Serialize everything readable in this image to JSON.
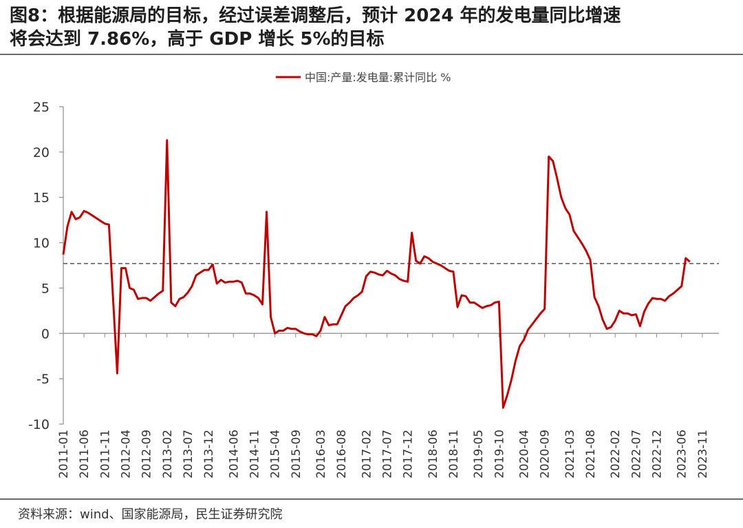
{
  "figure": {
    "title_line1": "图8：根据能源局的目标，经过误差调整后，预计 2024 年的发电量同比增速",
    "title_line2": "将会达到 7.86%，高于 GDP 增长 5%的目标",
    "source": "资料来源：wind、国家能源局，民生证券研究院"
  },
  "chart_data": {
    "type": "line",
    "legend": {
      "label": "中国:产量:发电量:累计同比 %",
      "position": "top-center"
    },
    "ylim": [
      -10,
      25
    ],
    "yticks": [
      -10,
      -5,
      0,
      5,
      10,
      15,
      20,
      25
    ],
    "xtick_labels": [
      "2011-01",
      "2011-06",
      "2011-11",
      "2012-04",
      "2012-09",
      "2013-02",
      "2013-07",
      "2013-12",
      "2014-06",
      "2014-11",
      "2015-04",
      "2015-09",
      "2016-03",
      "2016-08",
      "2017-02",
      "2017-07",
      "2017-12",
      "2018-06",
      "2018-11",
      "2019-05",
      "2019-10",
      "2020-04",
      "2020-09",
      "2021-03",
      "2021-08",
      "2022-02",
      "2022-07",
      "2022-12",
      "2023-06",
      "2023-11"
    ],
    "reference_line": {
      "value": 7.7,
      "style": "dashed",
      "color": "#333333"
    },
    "colors": {
      "series": "#C00000",
      "axis": "#8c8c8c"
    },
    "series": [
      {
        "name": "中国:产量:发电量:累计同比 %",
        "points": [
          [
            "2011-01",
            8.7
          ],
          [
            "2011-02",
            11.8
          ],
          [
            "2011-03",
            13.4
          ],
          [
            "2011-04",
            12.6
          ],
          [
            "2011-05",
            12.8
          ],
          [
            "2011-06",
            13.5
          ],
          [
            "2011-07",
            13.3
          ],
          [
            "2011-08",
            13.0
          ],
          [
            "2011-09",
            12.7
          ],
          [
            "2011-10",
            12.4
          ],
          [
            "2011-11",
            12.1
          ],
          [
            "2011-12",
            12.0
          ],
          [
            "2012-02",
            -4.4
          ],
          [
            "2012-03",
            7.2
          ],
          [
            "2012-04",
            7.2
          ],
          [
            "2012-05",
            5.0
          ],
          [
            "2012-06",
            4.8
          ],
          [
            "2012-07",
            3.8
          ],
          [
            "2012-08",
            3.9
          ],
          [
            "2012-09",
            3.9
          ],
          [
            "2012-10",
            3.6
          ],
          [
            "2012-11",
            4.0
          ],
          [
            "2012-12",
            4.4
          ],
          [
            "2013-01",
            4.7
          ],
          [
            "2013-02",
            21.3
          ],
          [
            "2013-03",
            3.4
          ],
          [
            "2013-04",
            3.0
          ],
          [
            "2013-05",
            3.8
          ],
          [
            "2013-06",
            4.0
          ],
          [
            "2013-07",
            4.5
          ],
          [
            "2013-08",
            5.2
          ],
          [
            "2013-09",
            6.4
          ],
          [
            "2013-10",
            6.7
          ],
          [
            "2013-11",
            7.0
          ],
          [
            "2013-12",
            7.0
          ],
          [
            "2014-01",
            7.6
          ],
          [
            "2014-02",
            5.5
          ],
          [
            "2014-03",
            5.9
          ],
          [
            "2014-04",
            5.6
          ],
          [
            "2014-05",
            5.7
          ],
          [
            "2014-06",
            5.7
          ],
          [
            "2014-07",
            5.8
          ],
          [
            "2014-08",
            5.6
          ],
          [
            "2014-09",
            4.4
          ],
          [
            "2014-10",
            4.4
          ],
          [
            "2014-11",
            4.2
          ],
          [
            "2014-12",
            3.9
          ],
          [
            "2015-01",
            3.2
          ],
          [
            "2015-02",
            13.4
          ],
          [
            "2015-03",
            1.8
          ],
          [
            "2015-04",
            0.0
          ],
          [
            "2015-05",
            0.3
          ],
          [
            "2015-06",
            0.3
          ],
          [
            "2015-07",
            0.6
          ],
          [
            "2015-08",
            0.5
          ],
          [
            "2015-09",
            0.5
          ],
          [
            "2015-10",
            0.2
          ],
          [
            "2015-11",
            0.0
          ],
          [
            "2015-12",
            -0.1
          ],
          [
            "2016-01",
            -0.1
          ],
          [
            "2016-02",
            -0.3
          ],
          [
            "2016-03",
            0.3
          ],
          [
            "2016-04",
            1.8
          ],
          [
            "2016-05",
            0.9
          ],
          [
            "2016-06",
            1.0
          ],
          [
            "2016-07",
            1.0
          ],
          [
            "2016-08",
            2.0
          ],
          [
            "2016-09",
            3.0
          ],
          [
            "2016-10",
            3.4
          ],
          [
            "2016-11",
            3.9
          ],
          [
            "2016-12",
            4.2
          ],
          [
            "2017-01",
            4.6
          ],
          [
            "2017-02",
            6.3
          ],
          [
            "2017-03",
            6.8
          ],
          [
            "2017-04",
            6.7
          ],
          [
            "2017-05",
            6.5
          ],
          [
            "2017-06",
            6.4
          ],
          [
            "2017-07",
            6.9
          ],
          [
            "2017-08",
            6.6
          ],
          [
            "2017-09",
            6.4
          ],
          [
            "2017-10",
            6.0
          ],
          [
            "2017-11",
            5.8
          ],
          [
            "2017-12",
            5.7
          ],
          [
            "2018-01",
            11.1
          ],
          [
            "2018-02",
            8.0
          ],
          [
            "2018-03",
            7.7
          ],
          [
            "2018-04",
            8.5
          ],
          [
            "2018-05",
            8.3
          ],
          [
            "2018-06",
            7.9
          ],
          [
            "2018-07",
            7.7
          ],
          [
            "2018-08",
            7.5
          ],
          [
            "2018-09",
            7.2
          ],
          [
            "2018-10",
            6.9
          ],
          [
            "2018-11",
            6.8
          ],
          [
            "2018-12",
            2.9
          ],
          [
            "2019-01",
            4.2
          ],
          [
            "2019-02",
            4.1
          ],
          [
            "2019-03",
            3.4
          ],
          [
            "2019-04",
            3.4
          ],
          [
            "2019-05",
            3.1
          ],
          [
            "2019-06",
            2.8
          ],
          [
            "2019-07",
            3.0
          ],
          [
            "2019-08",
            3.1
          ],
          [
            "2019-09",
            3.4
          ],
          [
            "2019-10",
            3.5
          ],
          [
            "2019-11",
            -8.2
          ],
          [
            "2019-12",
            -6.8
          ],
          [
            "2020-01",
            -5.1
          ],
          [
            "2020-02",
            -3.0
          ],
          [
            "2020-03",
            -1.4
          ],
          [
            "2020-04",
            -0.7
          ],
          [
            "2020-05",
            0.4
          ],
          [
            "2020-06",
            1.0
          ],
          [
            "2020-07",
            1.6
          ],
          [
            "2020-08",
            2.2
          ],
          [
            "2020-09",
            2.7
          ],
          [
            "2020-10",
            19.5
          ],
          [
            "2020-11",
            19.0
          ],
          [
            "2020-12",
            17.1
          ],
          [
            "2021-01",
            15.0
          ],
          [
            "2021-02",
            13.8
          ],
          [
            "2021-03",
            13.1
          ],
          [
            "2021-04",
            11.3
          ],
          [
            "2021-05",
            10.6
          ],
          [
            "2021-06",
            9.9
          ],
          [
            "2021-07",
            9.1
          ],
          [
            "2021-08",
            8.1
          ],
          [
            "2021-09",
            4.0
          ],
          [
            "2021-10",
            3.0
          ],
          [
            "2021-11",
            1.5
          ],
          [
            "2021-12",
            0.5
          ],
          [
            "2022-01",
            0.7
          ],
          [
            "2022-02",
            1.4
          ],
          [
            "2022-03",
            2.5
          ],
          [
            "2022-04",
            2.2
          ],
          [
            "2022-05",
            2.2
          ],
          [
            "2022-06",
            2.0
          ],
          [
            "2022-07",
            2.1
          ],
          [
            "2022-08",
            0.8
          ],
          [
            "2022-09",
            2.4
          ],
          [
            "2022-10",
            3.3
          ],
          [
            "2022-11",
            3.9
          ],
          [
            "2022-12",
            3.8
          ],
          [
            "2023-01",
            3.8
          ],
          [
            "2023-02",
            3.6
          ],
          [
            "2023-03",
            4.1
          ],
          [
            "2023-04",
            4.4
          ],
          [
            "2023-05",
            4.8
          ],
          [
            "2023-06",
            5.2
          ],
          [
            "2023-07",
            8.3
          ],
          [
            "2023-08",
            7.9
          ]
        ]
      }
    ]
  }
}
